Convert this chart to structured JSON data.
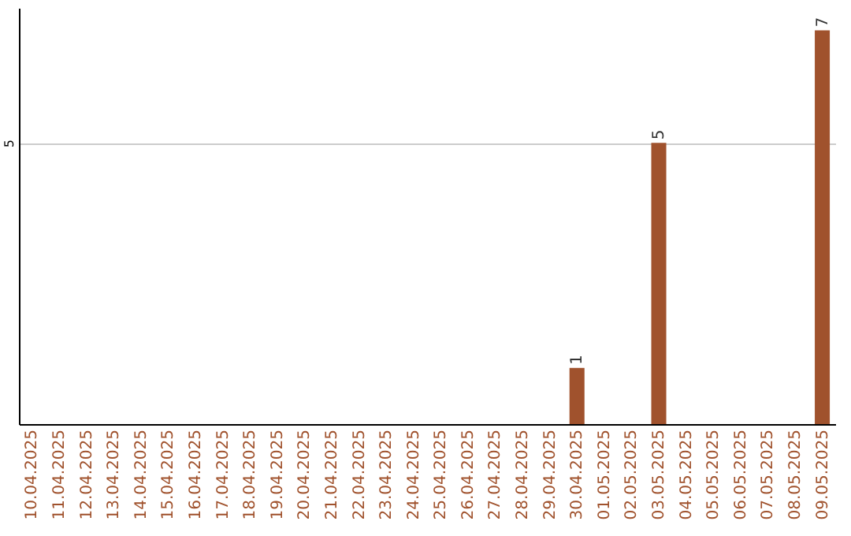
{
  "chart_data": {
    "type": "bar",
    "categories": [
      "10.04.2025",
      "11.04.2025",
      "12.04.2025",
      "13.04.2025",
      "14.04.2025",
      "15.04.2025",
      "16.04.2025",
      "17.04.2025",
      "18.04.2025",
      "19.04.2025",
      "20.04.2025",
      "21.04.2025",
      "22.04.2025",
      "23.04.2025",
      "24.04.2025",
      "25.04.2025",
      "26.04.2025",
      "27.04.2025",
      "28.04.2025",
      "29.04.2025",
      "30.04.2025",
      "01.05.2025",
      "02.05.2025",
      "03.05.2025",
      "04.05.2025",
      "05.05.2025",
      "06.05.2025",
      "07.05.2025",
      "08.05.2025",
      "09.05.2025"
    ],
    "values": [
      null,
      null,
      null,
      null,
      null,
      null,
      null,
      null,
      null,
      null,
      null,
      null,
      null,
      null,
      null,
      null,
      null,
      null,
      null,
      null,
      1,
      null,
      null,
      5,
      null,
      null,
      null,
      null,
      null,
      7
    ],
    "color": "#a0522d",
    "ylim": [
      0,
      7.4
    ],
    "yticks": [
      5
    ],
    "grid": "y",
    "data_labels": true
  }
}
